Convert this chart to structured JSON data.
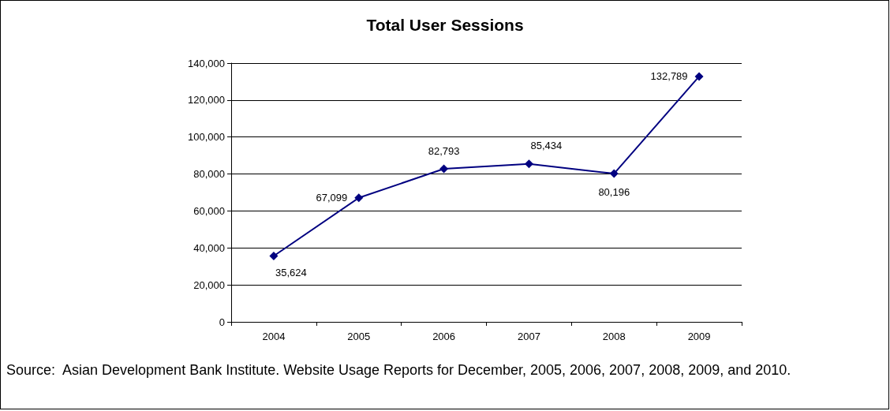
{
  "chart_data": {
    "type": "line",
    "title": "Total User Sessions",
    "categories": [
      "2004",
      "2005",
      "2006",
      "2007",
      "2008",
      "2009"
    ],
    "series": [
      {
        "color": "#000080",
        "values": [
          35624,
          67099,
          82793,
          85434,
          80196,
          132789
        ],
        "value_labels": [
          "35,624",
          "67,099",
          "82,793",
          "85,434",
          "80,196",
          "132,789"
        ]
      }
    ],
    "ylim": [
      0,
      140000
    ],
    "yticks": [
      0,
      {
        "value": 20000,
        "label": "20,000"
      },
      {
        "value": 40000,
        "label": "40,000"
      },
      {
        "value": 60000,
        "label": "60,000"
      },
      {
        "value": 80000,
        "label": "80,000"
      },
      {
        "value": 100000,
        "label": "100,000"
      },
      {
        "value": 120000,
        "label": "120,000"
      },
      {
        "value": 140000,
        "label": "140,000"
      }
    ],
    "grid": "y",
    "marker": "diamond",
    "line_style": "solid",
    "annotations": [
      "Source:  Asian Development Bank Institute. Website Usage Reports for December, 2005, 2006, 2007, 2008, 2009, and 2010."
    ]
  }
}
